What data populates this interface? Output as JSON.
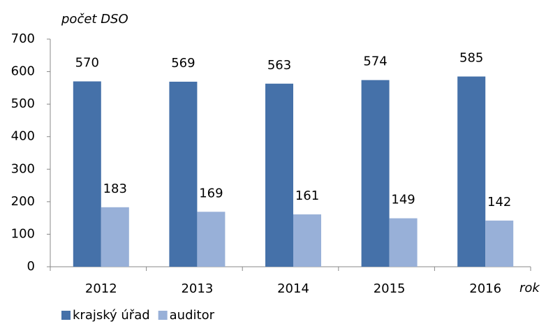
{
  "chart_data": {
    "type": "bar",
    "y_axis_label": "počet DSO",
    "x_axis_label": "rok",
    "categories": [
      "2012",
      "2013",
      "2014",
      "2015",
      "2016"
    ],
    "series": [
      {
        "name": "krajský úřad",
        "color": "#4571a9",
        "values": [
          570,
          569,
          563,
          574,
          585
        ]
      },
      {
        "name": "auditor",
        "color": "#98b0d8",
        "values": [
          183,
          169,
          161,
          149,
          142
        ]
      }
    ],
    "ylim": [
      0,
      700
    ],
    "yticks": [
      0,
      100,
      200,
      300,
      400,
      500,
      600,
      700
    ],
    "grid": false,
    "legend": "bottom-left",
    "show_value_labels": true
  }
}
